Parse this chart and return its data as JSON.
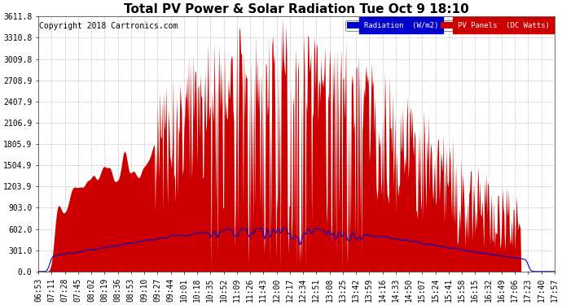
{
  "title": "Total PV Power & Solar Radiation Tue Oct 9 18:10",
  "copyright": "Copyright 2018 Cartronics.com",
  "legend_radiation": "Radiation  (W/m2)",
  "legend_pv": "PV Panels  (DC Watts)",
  "y_ticks": [
    0.0,
    301.0,
    602.0,
    903.0,
    1203.9,
    1504.9,
    1805.9,
    2106.9,
    2407.9,
    2708.9,
    3009.8,
    3310.8,
    3611.8
  ],
  "x_labels": [
    "06:53",
    "07:11",
    "07:28",
    "07:45",
    "08:02",
    "08:19",
    "08:36",
    "08:53",
    "09:10",
    "09:27",
    "09:44",
    "10:01",
    "10:18",
    "10:35",
    "10:52",
    "11:09",
    "11:26",
    "11:43",
    "12:00",
    "12:17",
    "12:34",
    "12:51",
    "13:08",
    "13:25",
    "13:42",
    "13:59",
    "14:16",
    "14:33",
    "14:50",
    "15:07",
    "15:24",
    "15:41",
    "15:58",
    "16:15",
    "16:32",
    "16:49",
    "17:06",
    "17:23",
    "17:40",
    "17:57"
  ],
  "background_color": "#ffffff",
  "plot_bg_color": "#ffffff",
  "grid_color": "#aaaaaa",
  "radiation_color": "#0000cc",
  "pv_fill_color": "#cc0000",
  "radiation_legend_bg": "#0000cc",
  "pv_legend_bg": "#cc0000",
  "title_fontsize": 11,
  "copyright_fontsize": 7,
  "tick_fontsize": 7,
  "ylim_max": 3611.8,
  "ylim_min": 0.0
}
